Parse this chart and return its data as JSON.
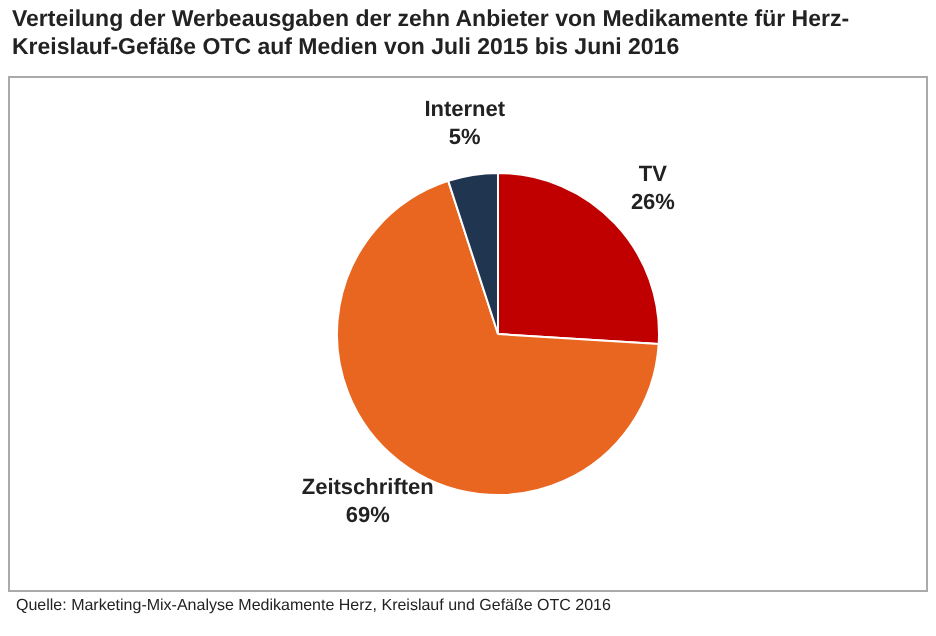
{
  "chart_data": {
    "type": "pie",
    "title": "Verteilung der Werbeausgaben der zehn Anbieter von Medikamente für Herz-Kreislauf-Gefäße OTC auf Medien von Juli 2015 bis Juni 2016",
    "categories": [
      "TV",
      "Zeitschriften",
      "Internet"
    ],
    "values": [
      26,
      69,
      5
    ],
    "colors": [
      "#c00000",
      "#e8661f",
      "#1f3550"
    ],
    "value_labels": [
      "26%",
      "69%",
      "5%"
    ],
    "legend": false,
    "annotations": [
      "Quelle: Marketing-Mix-Analyse Medikamente Herz, Kreislauf und Gefäße OTC 2016"
    ]
  }
}
